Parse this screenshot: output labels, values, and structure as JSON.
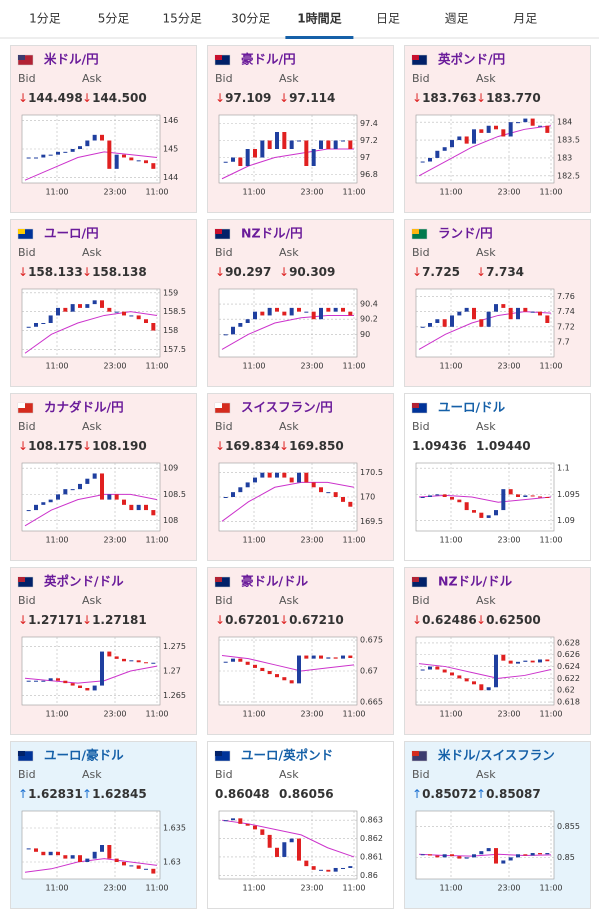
{
  "tabs": {
    "items": [
      "1分足",
      "5分足",
      "15分足",
      "30分足",
      "1時間足",
      "日足",
      "週足",
      "月足"
    ],
    "active": 4,
    "active_color": "#1560a8"
  },
  "style": {
    "up": "#1f3f9f",
    "down": "#e02020",
    "ma": "#cc33cc"
  },
  "cards": [
    {
      "name": "米ドル/円",
      "flag": [
        "#b22234",
        "#3c3b6e"
      ],
      "name_color": "#6a1b9a",
      "background": "#fcecec",
      "bid_label": "Bid",
      "ask_label": "Ask",
      "dir": "↓",
      "dir_color": "#d22",
      "bid": "144.498",
      "ask": "144.500",
      "chart": {
        "ylim": [
          143.8,
          146.2
        ],
        "yticks": [
          144,
          145,
          146
        ],
        "xlabels": [
          "11:00",
          "23:00",
          "11:00"
        ],
        "values": [
          144.7,
          144.7,
          144.8,
          144.8,
          144.9,
          144.9,
          145.0,
          145.1,
          145.3,
          145.5,
          145.3,
          144.3,
          144.8,
          144.7,
          144.6,
          144.6,
          144.5,
          144.3
        ],
        "ma": [
          143.9,
          144.3,
          144.7,
          144.9,
          144.8,
          144.7
        ]
      }
    },
    {
      "name": "豪ドル/円",
      "flag": [
        "#012169",
        "#c8102e"
      ],
      "name_color": "#6a1b9a",
      "background": "#fcecec",
      "bid_label": "Bid",
      "ask_label": "Ask",
      "dir": "↓",
      "dir_color": "#d22",
      "bid": "97.109",
      "ask": "97.114",
      "chart": {
        "ylim": [
          96.7,
          97.5
        ],
        "yticks": [
          96.8,
          97,
          97.2,
          97.4
        ],
        "xlabels": [
          "11:00",
          "23:00",
          "11:00"
        ],
        "values": [
          96.95,
          97.0,
          96.9,
          97.1,
          97.0,
          97.2,
          97.1,
          97.3,
          97.1,
          97.2,
          97.2,
          96.9,
          97.1,
          97.2,
          97.1,
          97.2,
          97.2,
          97.1
        ],
        "ma": [
          96.75,
          96.9,
          97.0,
          97.05,
          97.1,
          97.1
        ]
      }
    },
    {
      "name": "英ポンド/円",
      "flag": [
        "#012169",
        "#c8102e"
      ],
      "name_color": "#6a1b9a",
      "background": "#fcecec",
      "bid_label": "Bid",
      "ask_label": "Ask",
      "dir": "↓",
      "dir_color": "#d22",
      "bid": "183.763",
      "ask": "183.770",
      "chart": {
        "ylim": [
          182.3,
          184.2
        ],
        "yticks": [
          182.5,
          183,
          183.5,
          184
        ],
        "xlabels": [
          "11:00",
          "23:00",
          "11:00"
        ],
        "values": [
          182.9,
          183.0,
          183.2,
          183.3,
          183.5,
          183.6,
          183.4,
          183.8,
          183.7,
          183.9,
          183.8,
          183.6,
          184.0,
          184.0,
          184.1,
          183.9,
          183.9,
          183.7
        ],
        "ma": [
          182.5,
          182.9,
          183.3,
          183.6,
          183.8,
          183.9
        ]
      }
    },
    {
      "name": "ユーロ/円",
      "flag": [
        "#003399",
        "#ffcc00"
      ],
      "name_color": "#6a1b9a",
      "background": "#fcecec",
      "bid_label": "Bid",
      "ask_label": "Ask",
      "dir": "↓",
      "dir_color": "#d22",
      "bid": "158.133",
      "ask": "158.138",
      "chart": {
        "ylim": [
          157.3,
          159.1
        ],
        "yticks": [
          157.5,
          158,
          158.5,
          159
        ],
        "xlabels": [
          "11:00",
          "23:00",
          "11:00"
        ],
        "values": [
          158.1,
          158.2,
          158.2,
          158.4,
          158.6,
          158.5,
          158.7,
          158.6,
          158.7,
          158.8,
          158.6,
          158.5,
          158.5,
          158.4,
          158.4,
          158.3,
          158.2,
          158.0
        ],
        "ma": [
          157.4,
          157.9,
          158.2,
          158.4,
          158.5,
          158.4
        ]
      }
    },
    {
      "name": "NZドル/円",
      "flag": [
        "#012169",
        "#c8102e"
      ],
      "name_color": "#6a1b9a",
      "background": "#fcecec",
      "bid_label": "Bid",
      "ask_label": "Ask",
      "dir": "↓",
      "dir_color": "#d22",
      "bid": "90.297",
      "ask": "90.309",
      "chart": {
        "ylim": [
          89.7,
          90.6
        ],
        "yticks": [
          90,
          90.2,
          90.4
        ],
        "xlabels": [
          "11:00",
          "23:00",
          "11:00"
        ],
        "values": [
          90.0,
          90.1,
          90.15,
          90.2,
          90.3,
          90.25,
          90.35,
          90.3,
          90.25,
          90.35,
          90.3,
          90.3,
          90.2,
          90.35,
          90.3,
          90.35,
          90.3,
          90.25
        ],
        "ma": [
          89.8,
          90.0,
          90.15,
          90.22,
          90.25,
          90.25
        ]
      }
    },
    {
      "name": "ランド/円",
      "flag": [
        "#007a4d",
        "#ffb612"
      ],
      "name_color": "#6a1b9a",
      "background": "#fcecec",
      "bid_label": "Bid",
      "ask_label": "Ask",
      "dir": "↓",
      "dir_color": "#d22",
      "bid": "7.725",
      "ask": "7.734",
      "chart": {
        "ylim": [
          7.68,
          7.77
        ],
        "yticks": [
          7.7,
          7.72,
          7.74,
          7.76
        ],
        "xlabels": [
          "11:00",
          "23:00",
          "11:00"
        ],
        "values": [
          7.72,
          7.725,
          7.73,
          7.72,
          7.735,
          7.74,
          7.745,
          7.73,
          7.72,
          7.74,
          7.75,
          7.745,
          7.73,
          7.745,
          7.74,
          7.74,
          7.735,
          7.725
        ],
        "ma": [
          7.69,
          7.71,
          7.725,
          7.735,
          7.74,
          7.738
        ]
      }
    },
    {
      "name": "カナダドル/円",
      "flag": [
        "#d52b1e",
        "#ffffff"
      ],
      "name_color": "#6a1b9a",
      "background": "#fcecec",
      "bid_label": "Bid",
      "ask_label": "Ask",
      "dir": "↓",
      "dir_color": "#d22",
      "bid": "108.175",
      "ask": "108.190",
      "chart": {
        "ylim": [
          107.8,
          109.1
        ],
        "yticks": [
          108,
          108.5,
          109
        ],
        "xlabels": [
          "11:00",
          "23:00",
          "11:00"
        ],
        "values": [
          108.2,
          108.3,
          108.35,
          108.4,
          108.5,
          108.6,
          108.6,
          108.7,
          108.8,
          108.9,
          108.4,
          108.5,
          108.4,
          108.3,
          108.2,
          108.3,
          108.2,
          108.1
        ],
        "ma": [
          107.9,
          108.2,
          108.4,
          108.5,
          108.5,
          108.4
        ]
      }
    },
    {
      "name": "スイスフラン/円",
      "flag": [
        "#d52b1e",
        "#ffffff"
      ],
      "name_color": "#6a1b9a",
      "background": "#fcecec",
      "bid_label": "Bid",
      "ask_label": "Ask",
      "dir": "↓",
      "dir_color": "#d22",
      "bid": "169.834",
      "ask": "169.850",
      "chart": {
        "ylim": [
          169.3,
          170.7
        ],
        "yticks": [
          169.5,
          170,
          170.5
        ],
        "xlabels": [
          "11:00",
          "23:00",
          "11:00"
        ],
        "values": [
          170.0,
          170.1,
          170.2,
          170.3,
          170.4,
          170.5,
          170.4,
          170.5,
          170.4,
          170.3,
          170.5,
          170.3,
          170.2,
          170.1,
          170.1,
          170.0,
          169.9,
          169.8
        ],
        "ma": [
          169.5,
          169.9,
          170.2,
          170.3,
          170.3,
          170.2
        ]
      }
    },
    {
      "name": "ユーロ/ドル",
      "flag": [
        "#003399",
        "#b22234"
      ],
      "name_color": "#1560a8",
      "background": "#ffffff",
      "bid_label": "Bid",
      "ask_label": "Ask",
      "bid": "1.09436",
      "ask": "1.09440",
      "chart": {
        "ylim": [
          1.088,
          1.101
        ],
        "yticks": [
          1.09,
          1.095,
          1.1
        ],
        "xlabels": [
          "11:00",
          "23:00",
          "11:00"
        ],
        "values": [
          1.0945,
          1.0948,
          1.095,
          1.0945,
          1.094,
          1.0935,
          1.092,
          1.0915,
          1.0905,
          1.091,
          1.092,
          1.096,
          1.095,
          1.0945,
          1.0948,
          1.0946,
          1.0945,
          1.0944
        ],
        "ma": [
          1.0945,
          1.0948,
          1.0945,
          1.0935,
          1.094,
          1.0945
        ]
      }
    },
    {
      "name": "英ポンド/ドル",
      "flag": [
        "#012169",
        "#b22234"
      ],
      "name_color": "#6a1b9a",
      "background": "#fcecec",
      "bid_label": "Bid",
      "ask_label": "Ask",
      "dir": "↓",
      "dir_color": "#d22",
      "bid": "1.27171",
      "ask": "1.27181",
      "chart": {
        "ylim": [
          1.263,
          1.277
        ],
        "yticks": [
          1.265,
          1.27,
          1.275
        ],
        "xlabels": [
          "11:00",
          "23:00",
          "11:00"
        ],
        "values": [
          1.268,
          1.268,
          1.268,
          1.2685,
          1.268,
          1.2675,
          1.267,
          1.2665,
          1.266,
          1.267,
          1.274,
          1.273,
          1.2725,
          1.272,
          1.2722,
          1.2718,
          1.2716,
          1.2717
        ],
        "ma": [
          1.2685,
          1.268,
          1.2675,
          1.268,
          1.27,
          1.271
        ]
      }
    },
    {
      "name": "豪ドル/ドル",
      "flag": [
        "#012169",
        "#b22234"
      ],
      "name_color": "#6a1b9a",
      "background": "#fcecec",
      "bid_label": "Bid",
      "ask_label": "Ask",
      "dir": "↓",
      "dir_color": "#d22",
      "bid": "0.67201",
      "ask": "0.67210",
      "chart": {
        "ylim": [
          0.6645,
          0.6755
        ],
        "yticks": [
          0.665,
          0.67,
          0.675
        ],
        "xlabels": [
          "11:00",
          "23:00",
          "11:00"
        ],
        "values": [
          0.6715,
          0.672,
          0.6715,
          0.671,
          0.6705,
          0.67,
          0.6695,
          0.669,
          0.6685,
          0.668,
          0.6725,
          0.672,
          0.6725,
          0.672,
          0.6722,
          0.672,
          0.6725,
          0.6721
        ],
        "ma": [
          0.6725,
          0.672,
          0.671,
          0.67,
          0.6705,
          0.671
        ]
      }
    },
    {
      "name": "NZドル/ドル",
      "flag": [
        "#012169",
        "#b22234"
      ],
      "name_color": "#6a1b9a",
      "background": "#fcecec",
      "bid_label": "Bid",
      "ask_label": "Ask",
      "dir": "↓",
      "dir_color": "#d22",
      "bid": "0.62486",
      "ask": "0.62500",
      "chart": {
        "ylim": [
          0.6175,
          0.629
        ],
        "yticks": [
          0.618,
          0.62,
          0.622,
          0.624,
          0.626,
          0.628
        ],
        "xlabels": [
          "11:00",
          "23:00",
          "11:00"
        ],
        "values": [
          0.6235,
          0.624,
          0.6235,
          0.623,
          0.6225,
          0.622,
          0.6215,
          0.621,
          0.62,
          0.6205,
          0.626,
          0.625,
          0.6245,
          0.6248,
          0.625,
          0.6247,
          0.6252,
          0.6249
        ],
        "ma": [
          0.6245,
          0.624,
          0.623,
          0.622,
          0.6225,
          0.6235
        ]
      }
    },
    {
      "name": "ユーロ/豪ドル",
      "flag": [
        "#003399",
        "#012169"
      ],
      "name_color": "#1560a8",
      "background": "#e6f3fb",
      "bid_label": "Bid",
      "ask_label": "Ask",
      "dir": "↑",
      "dir_color": "#1a6fd0",
      "bid": "1.62831",
      "ask": "1.62845",
      "chart": {
        "ylim": [
          1.6275,
          1.6375
        ],
        "yticks": [
          1.63,
          1.635
        ],
        "xlabels": [
          "11:00",
          "23:00",
          "11:00"
        ],
        "values": [
          1.632,
          1.6315,
          1.631,
          1.6315,
          1.631,
          1.6305,
          1.631,
          1.63,
          1.6305,
          1.6315,
          1.6325,
          1.6305,
          1.63,
          1.6295,
          1.6295,
          1.629,
          1.629,
          1.6283
        ],
        "ma": [
          1.6285,
          1.629,
          1.63,
          1.6305,
          1.63,
          1.6295
        ]
      }
    },
    {
      "name": "ユーロ/英ポンド",
      "flag": [
        "#003399",
        "#012169"
      ],
      "name_color": "#1560a8",
      "background": "#ffffff",
      "bid_label": "Bid",
      "ask_label": "Ask",
      "bid": "0.86048",
      "ask": "0.86056",
      "chart": {
        "ylim": [
          0.8598,
          0.8635
        ],
        "yticks": [
          0.86,
          0.861,
          0.862,
          0.863
        ],
        "xlabels": [
          "11:00",
          "23:00",
          "11:00"
        ],
        "values": [
          0.863,
          0.8631,
          0.8628,
          0.8627,
          0.8625,
          0.8622,
          0.8615,
          0.861,
          0.8618,
          0.862,
          0.8608,
          0.8605,
          0.8603,
          0.8603,
          0.8602,
          0.8604,
          0.8604,
          0.8605
        ],
        "ma": [
          0.863,
          0.8628,
          0.8625,
          0.8622,
          0.8615,
          0.861
        ]
      }
    },
    {
      "name": "米ドル/スイスフラン",
      "flag": [
        "#3c3b6e",
        "#d52b1e"
      ],
      "name_color": "#1560a8",
      "background": "#e6f3fb",
      "bid_label": "Bid",
      "ask_label": "Ask",
      "dir": "↑",
      "dir_color": "#1a6fd0",
      "bid": "0.85072",
      "ask": "0.85087",
      "chart": {
        "ylim": [
          0.8465,
          0.8575
        ],
        "yticks": [
          0.85,
          0.855
        ],
        "xlabels": [
          "11:00",
          "23:00",
          "11:00"
        ],
        "values": [
          0.8505,
          0.8503,
          0.85,
          0.8505,
          0.8502,
          0.8498,
          0.85,
          0.8505,
          0.851,
          0.8515,
          0.849,
          0.8495,
          0.85,
          0.8505,
          0.8503,
          0.8507,
          0.8505,
          0.8507
        ],
        "ma": [
          0.8505,
          0.8503,
          0.8502,
          0.8505,
          0.8503,
          0.8504
        ]
      }
    }
  ]
}
